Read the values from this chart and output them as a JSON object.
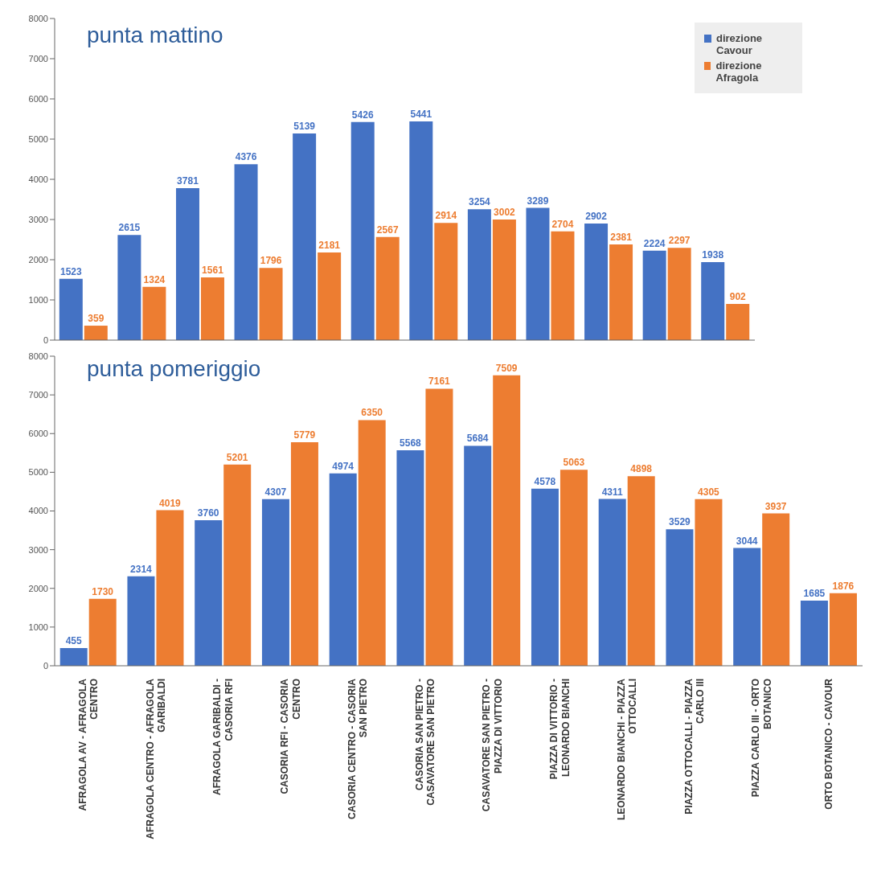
{
  "chart_data": [
    {
      "type": "bar",
      "title": "punta mattino",
      "categories": [
        null,
        null,
        null,
        null,
        null,
        null,
        null,
        null,
        null,
        null,
        null,
        null
      ],
      "series": [
        {
          "name": "direzione Cavour",
          "color": "#4472c4",
          "values": [
            1523,
            2615,
            3781,
            4376,
            5139,
            5426,
            5441,
            3254,
            3289,
            2902,
            2224,
            1938
          ]
        },
        {
          "name": "direzione Afragola",
          "color": "#ed7d31",
          "values": [
            359,
            1324,
            1561,
            1796,
            2181,
            2567,
            2914,
            3002,
            2704,
            2381,
            2297,
            902
          ]
        }
      ],
      "ylim": [
        0,
        8000
      ],
      "yticks": [
        0,
        1000,
        2000,
        3000,
        4000,
        5000,
        6000,
        7000,
        8000
      ],
      "grid": false,
      "legend": "top right",
      "data_labels": true,
      "tick_labels": "y"
    },
    {
      "type": "bar",
      "title": "punta pomeriggio",
      "categories": [
        "AFRAGOLA AV - AFRAGOLA CENTRO",
        "AFRAGOLA CENTRO - AFRAGOLA GARIBALDI",
        "AFRAGOLA GARIBALDI - CASORIA RFI",
        "CASORIA RFI - CASORIA CENTRO",
        "CASORIA CENTRO - CASORIA SAN PIETRO",
        "CASORIA SAN PIETRO - CASAVATORE SAN PIETRO",
        "CASAVATORE SAN PIETRO - PIAZZA DI VITTORIO",
        "PIAZZA DI VITTORIO - LEONARDO BIANCHI",
        "LEONARDO BIANCHI - PIAZZA OTTOCALLI",
        "PIAZZA OTTOCALLI - PIAZZA CARLO III",
        "PIAZZA CARLO III - ORTO BOTANICO",
        "ORTO BOTANICO - CAVOUR"
      ],
      "series": [
        {
          "color": "#4472c4",
          "values": [
            455,
            2314,
            3760,
            4307,
            4974,
            5568,
            5684,
            4578,
            4311,
            3529,
            3044,
            1685
          ]
        },
        {
          "color": "#ed7d31",
          "values": [
            1730,
            4019,
            5201,
            5779,
            6350,
            7161,
            7509,
            5063,
            4898,
            4305,
            3937,
            1876
          ]
        }
      ],
      "ylim": [
        0,
        8000
      ],
      "yticks": [
        0,
        1000,
        2000,
        3000,
        4000,
        5000,
        6000,
        7000,
        8000
      ],
      "grid": false,
      "data_labels": true
    }
  ]
}
